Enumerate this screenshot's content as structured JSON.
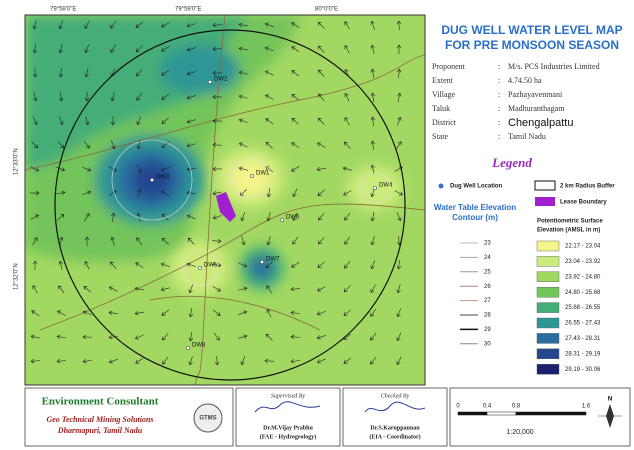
{
  "map": {
    "title": [
      "DUG WELL WATER LEVEL MAP",
      "FOR PRE MONSOON SEASON"
    ],
    "coords_top": [
      "79°58'0\"E",
      "79°59'0\"E",
      "80°0'0\"E"
    ],
    "coords_left": [
      "12°33'0\"N",
      "12°32'0\"N"
    ],
    "wells": [
      "DW2",
      "DW3",
      "DW1",
      "DW4",
      "DW6",
      "DW5",
      "DW7",
      "DW8"
    ],
    "info": [
      [
        "Proponent",
        ":",
        "M/s. PCS Industries Limited"
      ],
      [
        "Extent",
        ":",
        "4.74.50 ha"
      ],
      [
        "Village",
        ":",
        "Pazhayavenmani"
      ],
      [
        "Taluk",
        ":",
        "Madhuranthagam"
      ],
      [
        "District",
        ":",
        "Chengalpattu"
      ],
      [
        "State",
        ":",
        "Tamil Nadu"
      ]
    ],
    "legend": {
      "title": "Legend",
      "dug_well": "Dug Well Location",
      "buffer": "2 km Radius Buffer",
      "lease": "Lease Boundary",
      "contour_title": [
        "Water Table Elevation",
        "Contour (m)"
      ],
      "contours": [
        "23",
        "24",
        "25",
        "26",
        "27",
        "28",
        "29",
        "30"
      ],
      "surface_title": [
        "Potentiometric Surface",
        "Elevation (AMSL in m)"
      ],
      "classes": [
        {
          "label": "22.17 - 23.04",
          "color": "#f4f48a"
        },
        {
          "label": "23.04 - 23.92",
          "color": "#cdeb7c"
        },
        {
          "label": "23.92 - 24.80",
          "color": "#a2d862"
        },
        {
          "label": "24.80 - 25.68",
          "color": "#73c45a"
        },
        {
          "label": "25.68 - 26.55",
          "color": "#44ad78"
        },
        {
          "label": "26.55 - 27.43",
          "color": "#2e9694"
        },
        {
          "label": "27.43 - 28.31",
          "color": "#2b6d9f"
        },
        {
          "label": "28.31 - 29.19",
          "color": "#24468f"
        },
        {
          "label": "29.19 - 30.06",
          "color": "#1b216e"
        }
      ]
    },
    "footer": {
      "consultant": "Environment Consultant",
      "company": [
        "Geo Technical Mining Solutions",
        "Dharmapuri, Tamil Nadu"
      ],
      "supervised": [
        "Supervised By",
        "Dr.M.Vijay Prabhu",
        "(FAE - Hydrogeology)"
      ],
      "checked": [
        "Checked By",
        "Dr.S.Karuppannan",
        "(EIA - Coordinator)"
      ],
      "scale_ticks": [
        "0",
        "0.4",
        "0.8",
        "1.6"
      ],
      "scale": "1:20,000",
      "north": "N"
    }
  }
}
